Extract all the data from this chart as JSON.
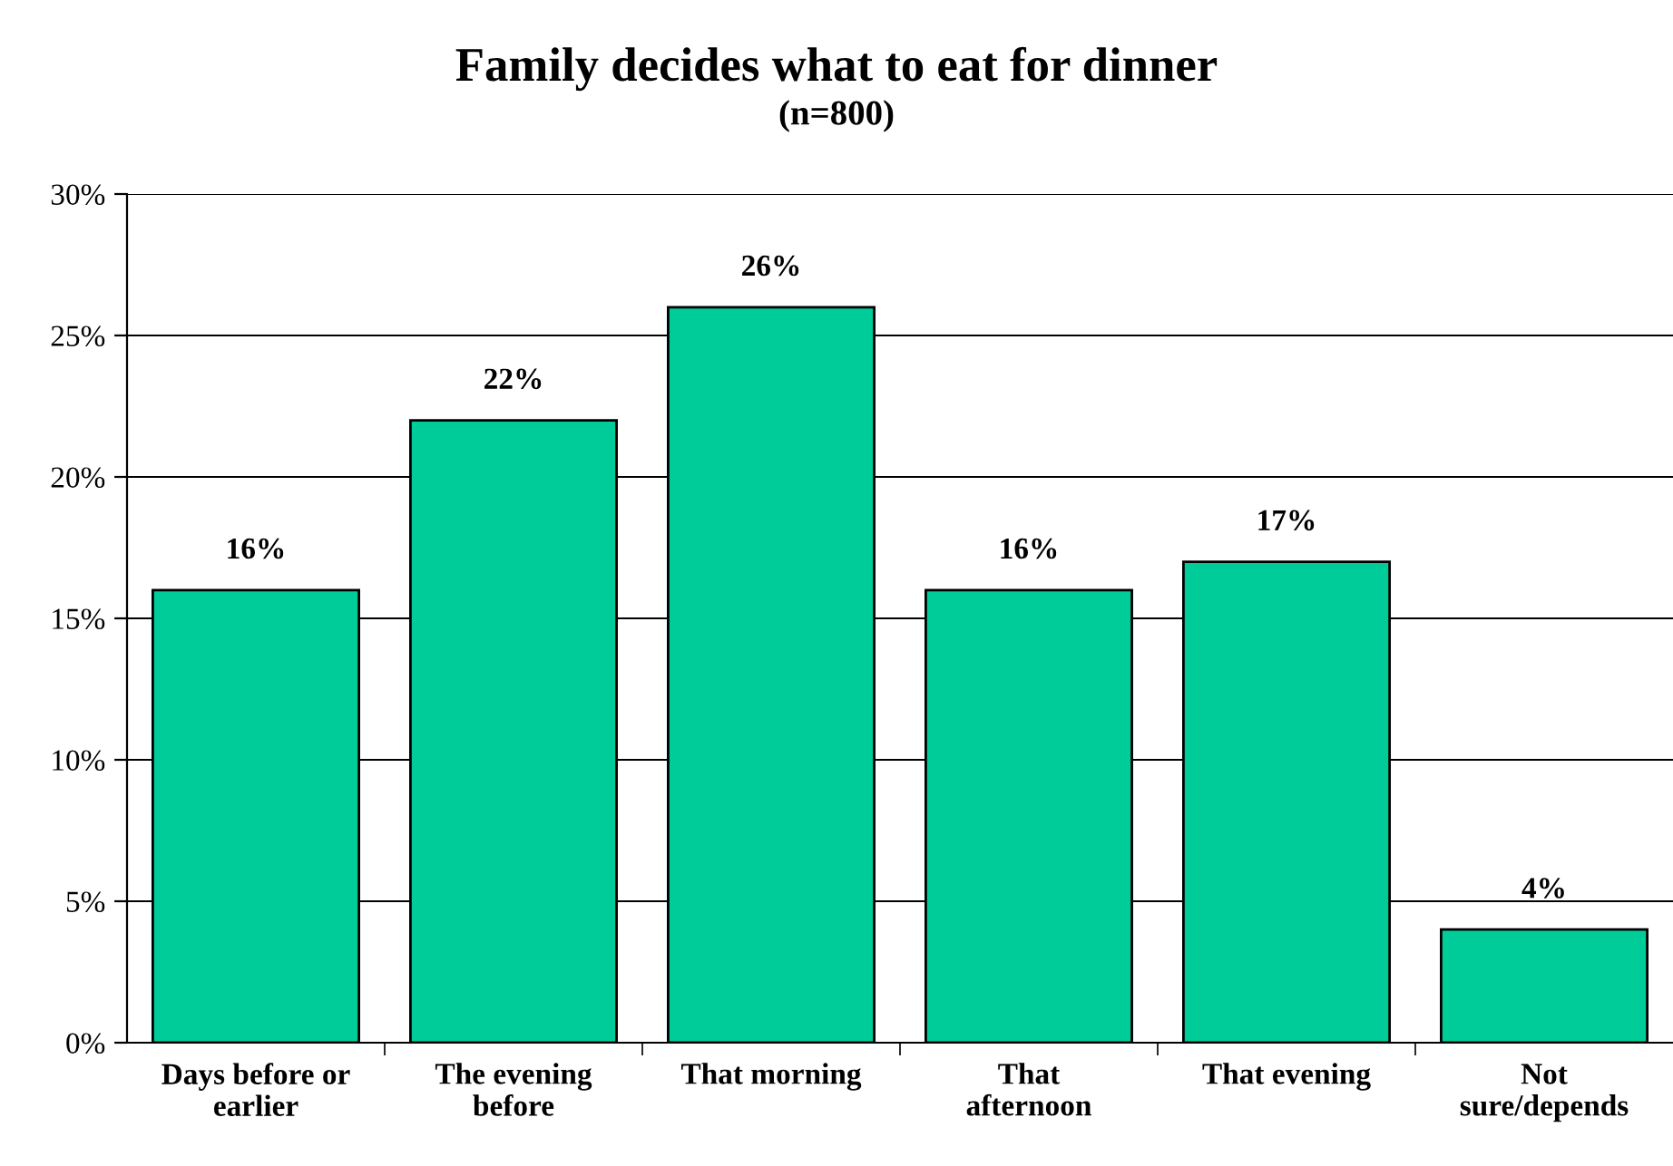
{
  "chart_data": {
    "type": "bar",
    "title": "Family decides what to eat for dinner",
    "subtitle": "(n=800)",
    "categories": [
      "Days before or\nearlier",
      "The evening\nbefore",
      "That morning",
      "That\nafternoon",
      "That evening",
      "Not\nsure/depends"
    ],
    "values": [
      16,
      22,
      26,
      16,
      17,
      4
    ],
    "value_labels": [
      "16%",
      "22%",
      "26%",
      "16%",
      "17%",
      "4%"
    ],
    "color": "#00cc99",
    "ylim": [
      0,
      30
    ],
    "yticks": [
      {
        "value": 0,
        "label": "0%"
      },
      {
        "value": 5,
        "label": "5%"
      },
      {
        "value": 10,
        "label": "10%"
      },
      {
        "value": 15,
        "label": "15%"
      },
      {
        "value": 20,
        "label": "20%"
      },
      {
        "value": 25,
        "label": "25%"
      },
      {
        "value": 30,
        "label": "30%"
      }
    ],
    "grid": "y"
  }
}
